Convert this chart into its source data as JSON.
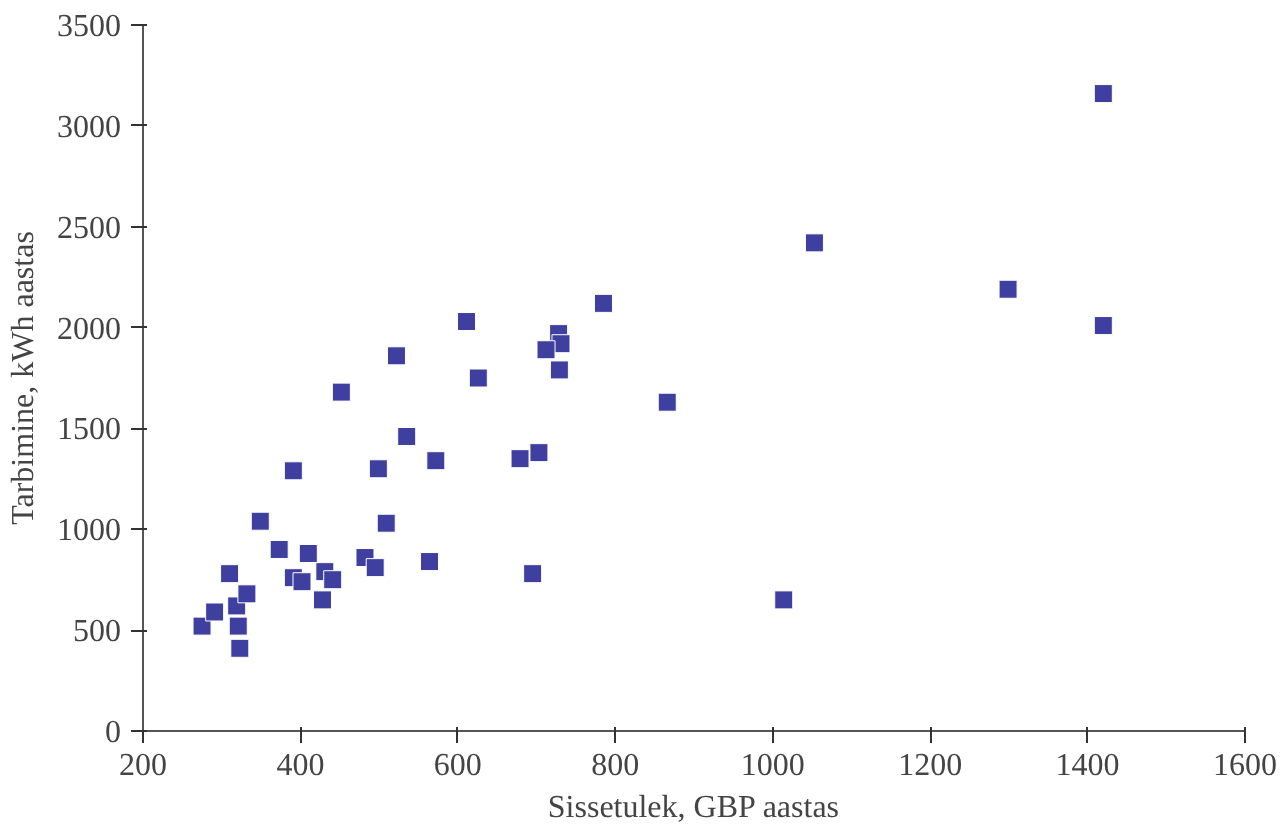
{
  "chart_data": {
    "type": "scatter",
    "xlabel": "Sissetulek, GBP aastas",
    "ylabel": "Tarbimine, kWh aastas",
    "x": [
      275,
      291,
      310,
      319,
      321,
      323,
      332,
      349,
      373,
      391,
      391,
      402,
      410,
      431,
      441,
      428,
      452,
      482,
      495,
      499,
      509,
      522,
      535,
      572,
      564,
      611,
      626,
      679,
      695,
      785,
      728,
      731,
      712,
      729,
      866,
      703,
      1014,
      1053,
      1299,
      1420,
      1420
    ],
    "series": [
      {
        "color": "#3f3f9f",
        "values": [
          520,
          590,
          780,
          620,
          520,
          410,
          680,
          1040,
          900,
          1290,
          760,
          740,
          880,
          790,
          750,
          650,
          1680,
          860,
          810,
          1300,
          1030,
          1860,
          1460,
          1340,
          840,
          2030,
          1750,
          1350,
          780,
          2120,
          1970,
          1920,
          1890,
          1790,
          1630,
          1380,
          650,
          2420,
          2190,
          3160,
          2010
        ]
      }
    ],
    "marker": "square",
    "grid": false,
    "xlim": [
      200,
      1600
    ],
    "xticks": [
      200,
      400,
      600,
      800,
      1000,
      1200,
      1400,
      1600
    ],
    "ylim": [
      0,
      3500
    ],
    "yticks": [
      0,
      500,
      1000,
      1500,
      2000,
      2500,
      3000,
      3500
    ]
  }
}
